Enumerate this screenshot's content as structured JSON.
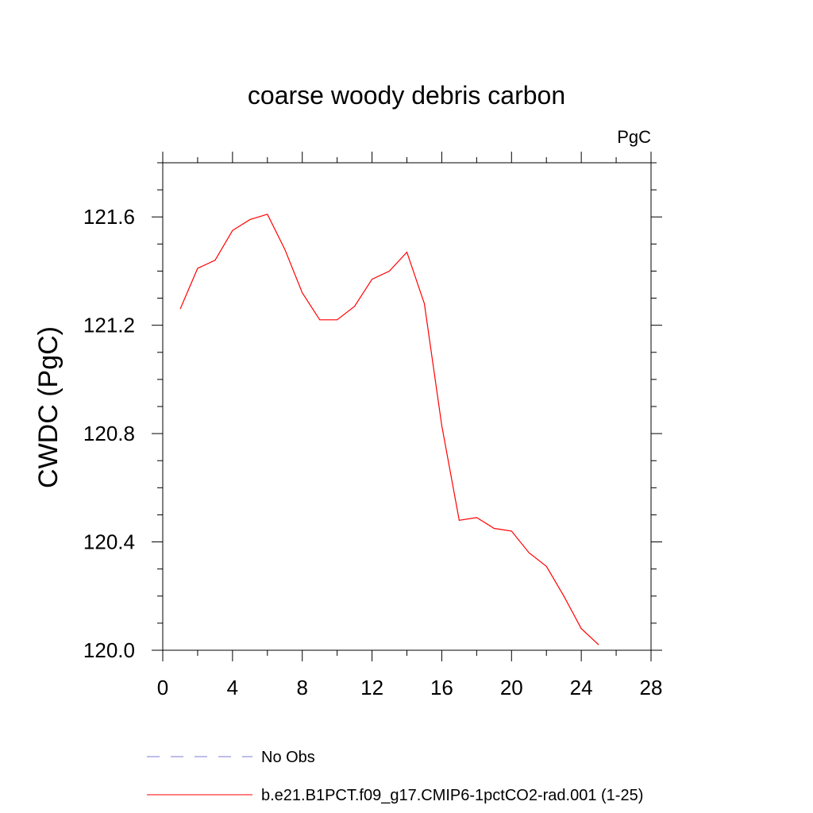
{
  "chart_data": {
    "type": "line",
    "title": "coarse woody debris carbon",
    "units_label": "PgC",
    "xlabel": "",
    "ylabel": "CWDC  (PgC)",
    "xlim": [
      0,
      28
    ],
    "ylim": [
      120.0,
      121.8
    ],
    "x_ticks": [
      0,
      4,
      8,
      12,
      16,
      20,
      24,
      28
    ],
    "x_minor_step": 2,
    "y_ticks": [
      120.0,
      120.4,
      120.8,
      121.2,
      121.6
    ],
    "y_tick_labels": [
      "120.0",
      "120.4",
      "120.8",
      "121.2",
      "121.6"
    ],
    "y_minor_step": 0.1,
    "grid": false,
    "legend_position": "bottom",
    "series": [
      {
        "name": "b.e21.B1PCT.f09_g17.CMIP6-1pctCO2-rad.001 (1-25)",
        "color": "#ff0000",
        "style": "solid",
        "x": [
          1,
          2,
          3,
          4,
          5,
          6,
          7,
          8,
          9,
          10,
          11,
          12,
          13,
          14,
          15,
          16,
          17,
          18,
          19,
          20,
          21,
          22,
          23,
          24,
          25
        ],
        "y": [
          121.26,
          121.41,
          121.44,
          121.55,
          121.59,
          121.61,
          121.48,
          121.32,
          121.22,
          121.22,
          121.27,
          121.37,
          121.4,
          121.47,
          121.28,
          120.83,
          120.48,
          120.49,
          120.45,
          120.44,
          120.36,
          120.31,
          120.2,
          120.08,
          120.02
        ]
      }
    ],
    "legend": [
      {
        "label": "No Obs",
        "color": "#7b7bd6",
        "style": "dashed"
      },
      {
        "label": "b.e21.B1PCT.f09_g17.CMIP6-1pctCO2-rad.001 (1-25)",
        "color": "#ff0000",
        "style": "solid"
      }
    ]
  }
}
